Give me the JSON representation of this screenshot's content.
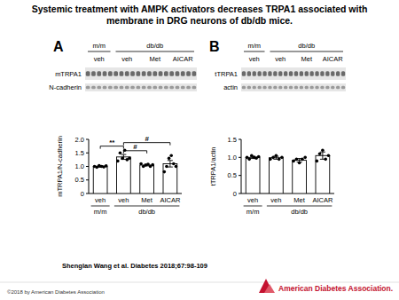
{
  "title": "Systemic treatment with AMPK activators decreases TRPA1 associated with membrane in DRG neurons of db/db mice.",
  "citation": "Shenglan Wang et al. Diabetes 2018;67:98-109",
  "copyright": "©2018 by American Diabetes Association",
  "publisher": "American Diabetes Association.",
  "panels": [
    {
      "letter": "A",
      "blot_rows": [
        "mTRPA1",
        "N-cadherin"
      ]
    },
    {
      "letter": "B",
      "blot_rows": [
        "tTRPA1",
        "actin"
      ]
    }
  ],
  "chart_data": [
    {
      "type": "bar",
      "y_label": "mTRPA1/N-cadherin",
      "categories": [
        "veh",
        "veh",
        "Met",
        "AICAR"
      ],
      "groups": [
        {
          "label": "m/m",
          "start": 0,
          "end": 0
        },
        {
          "label": "db/db",
          "start": 1,
          "end": 3
        }
      ],
      "values": [
        1.0,
        1.35,
        1.05,
        1.1
      ],
      "errors": [
        0.03,
        0.09,
        0.03,
        0.12
      ],
      "points": [
        [
          1.0,
          0.97,
          1.03,
          1.0,
          0.98,
          1.02
        ],
        [
          1.2,
          1.5,
          1.3,
          1.6,
          1.25,
          1.3
        ],
        [
          1.1,
          1.0,
          1.05,
          1.08,
          1.0,
          1.06
        ],
        [
          0.8,
          1.0,
          1.3,
          1.4,
          1.1,
          1.0
        ]
      ],
      "brackets": [
        {
          "label": "**",
          "from": 0,
          "to": 1,
          "y": 1.75
        },
        {
          "label": "#",
          "from": 1,
          "to": 3,
          "y": 1.88
        },
        {
          "label": "#",
          "from": 1,
          "to": 2,
          "y": 1.58
        }
      ],
      "color": "#ffffff",
      "ylim": [
        0,
        2.0
      ],
      "yticks": [
        0,
        0.5,
        {
          "value": 1,
          "label": "1.0"
        },
        1.5,
        {
          "value": 2,
          "label": "2.0"
        }
      ]
    },
    {
      "type": "bar",
      "y_label": "tTRPA1/actin",
      "categories": [
        "veh",
        "veh",
        "Met",
        "AICAR"
      ],
      "groups": [
        {
          "label": "m/m",
          "start": 0,
          "end": 0
        },
        {
          "label": "db/db",
          "start": 1,
          "end": 3
        }
      ],
      "values": [
        1.0,
        0.99,
        0.92,
        1.05
      ],
      "errors": [
        0.03,
        0.04,
        0.05,
        0.1
      ],
      "points": [
        [
          1.0,
          0.95,
          1.05,
          1.0,
          0.98,
          1.02
        ],
        [
          0.95,
          1.0,
          1.05,
          0.95,
          1.0
        ],
        [
          0.9,
          0.95,
          0.85,
          0.95,
          1.0
        ],
        [
          0.9,
          1.1,
          1.2,
          0.95,
          1.05
        ]
      ],
      "brackets": [],
      "color": "#ffffff",
      "ylim": [
        0,
        1.5
      ],
      "yticks": [
        0,
        0.5,
        {
          "value": 1,
          "label": "1.0"
        },
        1.5
      ]
    }
  ]
}
